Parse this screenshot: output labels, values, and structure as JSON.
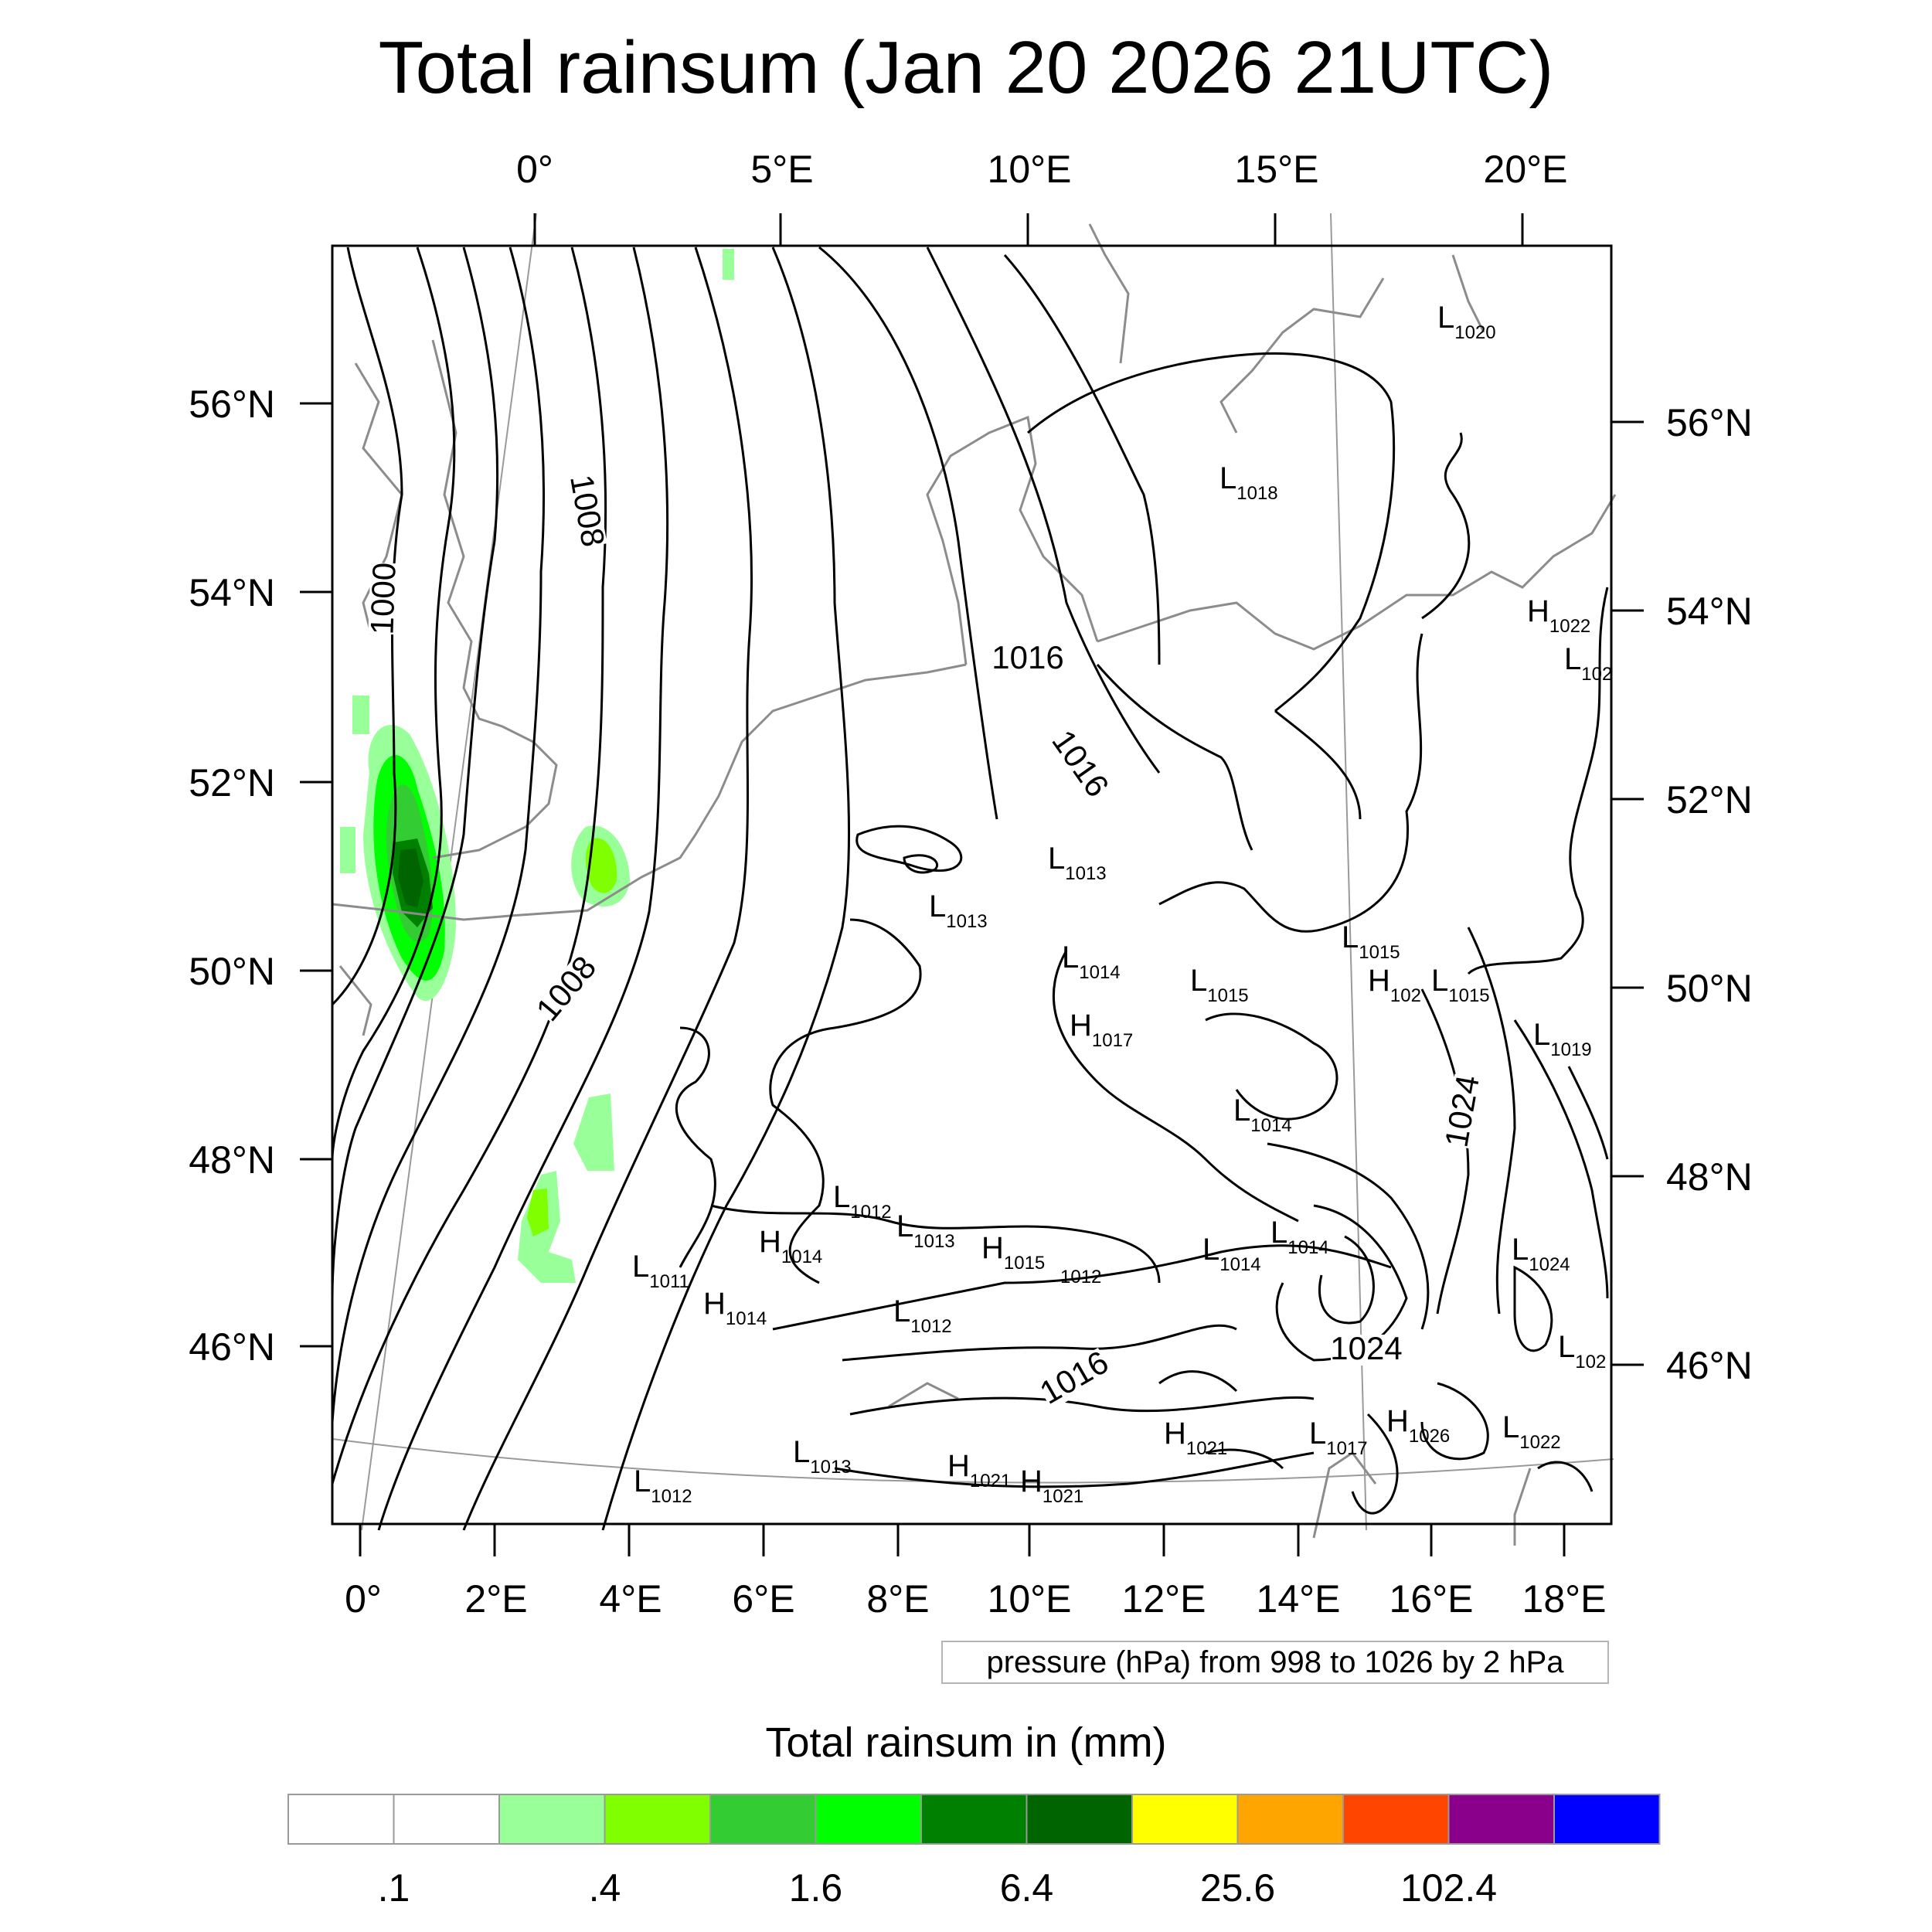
{
  "title": "Total rainsum (Jan 20 2026 21UTC)",
  "top_lon_labels": [
    "0°",
    "5°E",
    "10°E",
    "15°E",
    "20°E"
  ],
  "bottom_lon_labels": [
    "0°",
    "2°E",
    "4°E",
    "6°E",
    "8°E",
    "10°E",
    "12°E",
    "14°E",
    "16°E",
    "18°E"
  ],
  "left_lat_labels": [
    "56°N",
    "54°N",
    "52°N",
    "50°N",
    "48°N",
    "46°N"
  ],
  "right_lat_labels": [
    "56°N",
    "54°N",
    "52°N",
    "50°N",
    "48°N",
    "46°N"
  ],
  "isobar_labels": [
    "1000",
    "1008",
    "1008",
    "1016",
    "1016",
    "1016",
    "1024",
    "1024"
  ],
  "pressure_centers": [
    {
      "letter": "L",
      "value": "1020"
    },
    {
      "letter": "L",
      "value": "1018"
    },
    {
      "letter": "H",
      "value": "1022"
    },
    {
      "letter": "L",
      "value": "102"
    },
    {
      "letter": "L",
      "value": "1013"
    },
    {
      "letter": "L",
      "value": "1013"
    },
    {
      "letter": "L",
      "value": "1015"
    },
    {
      "letter": "L",
      "value": "1014"
    },
    {
      "letter": "L",
      "value": "1015"
    },
    {
      "letter": "H",
      "value": "102"
    },
    {
      "letter": "L",
      "value": "1015"
    },
    {
      "letter": "H",
      "value": "1017"
    },
    {
      "letter": "L",
      "value": "1019"
    },
    {
      "letter": "L",
      "value": "1014"
    },
    {
      "letter": "L",
      "value": "1012"
    },
    {
      "letter": "L",
      "value": "1013"
    },
    {
      "letter": "H",
      "value": "1014"
    },
    {
      "letter": "H",
      "value": "1015"
    },
    {
      "letter": "",
      "value": "1012"
    },
    {
      "letter": "L",
      "value": "1014"
    },
    {
      "letter": "L",
      "value": "1014"
    },
    {
      "letter": "L",
      "value": "1011"
    },
    {
      "letter": "H",
      "value": "1014"
    },
    {
      "letter": "L",
      "value": "1012"
    },
    {
      "letter": "L",
      "value": "1024"
    },
    {
      "letter": "L",
      "value": "102"
    },
    {
      "letter": "H",
      "value": "1026"
    },
    {
      "letter": "L",
      "value": "1022"
    },
    {
      "letter": "H",
      "value": "1021"
    },
    {
      "letter": "L",
      "value": "1017"
    },
    {
      "letter": "L",
      "value": "1013"
    },
    {
      "letter": "H",
      "value": "1021"
    },
    {
      "letter": "H",
      "value": "1021"
    },
    {
      "letter": "L",
      "value": "1012"
    }
  ],
  "contour_info": "pressure (hPa) from 998 to 1026 by 2 hPa",
  "colorbar": {
    "title": "Total rainsum in (mm)",
    "colors": [
      "#ffffff",
      "#ffffff",
      "#99ff99",
      "#80ff00",
      "#33cc33",
      "#00ff00",
      "#008000",
      "#006400",
      "#ffff00",
      "#ffa500",
      "#ff4500",
      "#8b008b",
      "#0000ff"
    ],
    "labels": [
      ".1",
      ".4",
      "1.6",
      "6.4",
      "25.6",
      "102.4"
    ]
  }
}
